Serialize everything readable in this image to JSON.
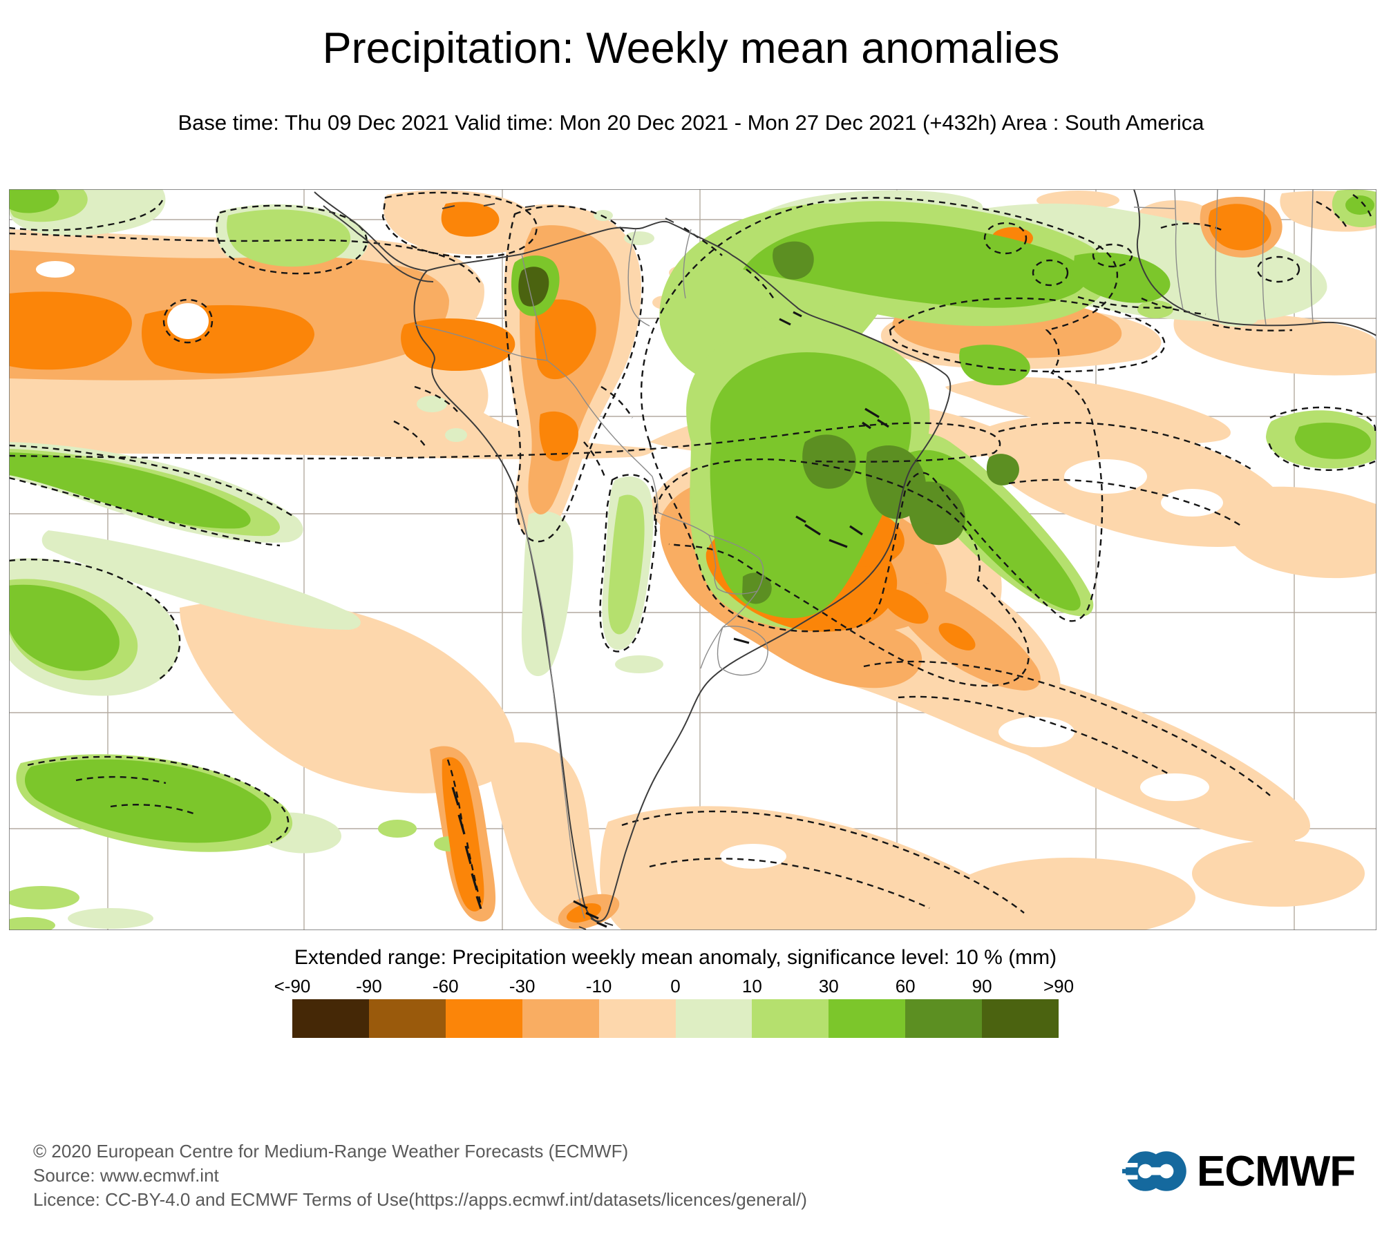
{
  "header": {
    "title": "Precipitation: Weekly mean anomalies",
    "subtitle": "Base time: Thu 09 Dec 2021 Valid time: Mon 20 Dec 2021 - Mon 27 Dec 2021 (+432h) Area : South America"
  },
  "legend": {
    "title": "Extended range: Precipitation weekly mean anomaly, significance level: 10 % (mm)",
    "tick_labels": [
      "<-90",
      "-90",
      "-60",
      "-30",
      "-10",
      "0",
      "10",
      "30",
      "60",
      "90",
      ">90"
    ],
    "colors": [
      "#452806",
      "#9a5a0c",
      "#fb8509",
      "#f9ad62",
      "#fdd7ac",
      "#deeec3",
      "#b5e06e",
      "#7cc62b",
      "#5c8f22",
      "#4b6310"
    ]
  },
  "map": {
    "background": "#ffffff",
    "grid_color": "#b3aaa0",
    "coast_color": "#3c3c3c",
    "border_color": "#8a8a8a",
    "contour_color": "#151515",
    "frame_color": "#6f6f6f"
  },
  "footer": {
    "copyright": "© 2020 European Centre for Medium-Range Weather Forecasts (ECMWF)",
    "source": "Source: www.ecmwf.int",
    "licence": "Licence: CC-BY-4.0 and ECMWF Terms of Use(https://apps.ecmwf.int/datasets/licences/general/)",
    "logo_text": "ECMWF",
    "logo_color": "#15699e"
  }
}
